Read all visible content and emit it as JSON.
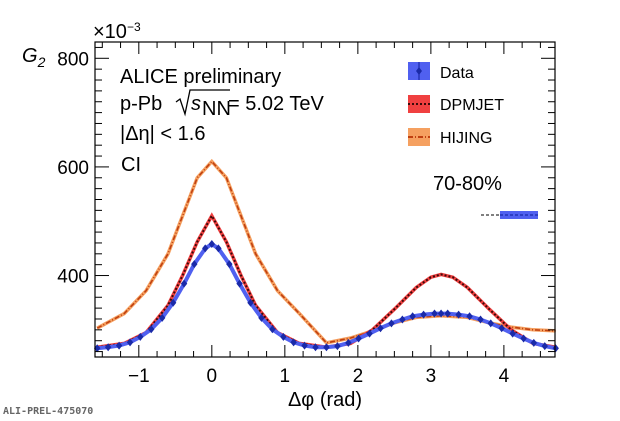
{
  "chart_data": {
    "type": "line",
    "ylabel_main": "G",
    "ylabel_sub": "2",
    "ymultiplier_base": "×10",
    "ymultiplier_exp": "−3",
    "xlabel": "Δφ (rad)",
    "xlim": [
      -1.6,
      4.7
    ],
    "ylim": [
      250,
      830
    ],
    "xticks": [
      -1,
      0,
      1,
      2,
      3,
      4
    ],
    "xtick_labels": [
      "−1",
      "0",
      "1",
      "2",
      "3",
      "4"
    ],
    "yticks": [
      400,
      600,
      800
    ],
    "ytick_labels": [
      "400",
      "600",
      "800"
    ],
    "annotations": {
      "line1": "ALICE preliminary",
      "line2_prefix": "p-Pb",
      "line2_s": "s",
      "line2_nn": "NN",
      "line2_value": " = 5.02 TeV",
      "line3": "|Δη| < 1.6",
      "line4": "CI",
      "centrality": "70-80%"
    },
    "legend": {
      "placement": "top-right",
      "entries": [
        "Data",
        "DPMJET",
        "HIJING"
      ]
    },
    "colors": {
      "data": "#1a2aa8",
      "data_band": "#5060f0",
      "dpmjet": "#3a0a0a",
      "dpmjet_band": "#f04040",
      "hijing": "#c04010",
      "hijing_band": "#f5a060"
    },
    "series": [
      {
        "name": "Data",
        "x": [
          -1.57,
          -1.42,
          -1.27,
          -1.12,
          -0.98,
          -0.83,
          -0.68,
          -0.53,
          -0.38,
          -0.24,
          -0.09,
          0.0,
          0.09,
          0.24,
          0.38,
          0.53,
          0.68,
          0.83,
          0.98,
          1.12,
          1.27,
          1.42,
          1.57,
          1.72,
          1.87,
          2.01,
          2.16,
          2.31,
          2.46,
          2.61,
          2.75,
          2.9,
          3.05,
          3.14,
          3.23,
          3.38,
          3.53,
          3.68,
          3.82,
          3.97,
          4.12,
          4.27,
          4.41,
          4.56,
          4.71
        ],
        "y": [
          266,
          268,
          271,
          277,
          287,
          301,
          322,
          350,
          385,
          421,
          450,
          458,
          450,
          421,
          385,
          350,
          322,
          301,
          287,
          277,
          271,
          268,
          268,
          270,
          276,
          284,
          293,
          303,
          312,
          319,
          325,
          328,
          330,
          330,
          330,
          328,
          325,
          319,
          312,
          303,
          293,
          284,
          276,
          270,
          266
        ]
      },
      {
        "name": "DPMJET",
        "x": [
          -1.57,
          -1.2,
          -0.9,
          -0.6,
          -0.4,
          -0.2,
          0.0,
          0.2,
          0.4,
          0.6,
          0.9,
          1.2,
          1.57,
          1.9,
          2.2,
          2.5,
          2.8,
          3.0,
          3.14,
          3.3,
          3.5,
          3.8,
          4.1,
          4.4,
          4.71
        ],
        "y": [
          268,
          275,
          295,
          345,
          400,
          462,
          510,
          462,
          400,
          345,
          295,
          275,
          268,
          275,
          300,
          338,
          378,
          397,
          402,
          397,
          378,
          338,
          300,
          275,
          268
        ]
      },
      {
        "name": "HIJING",
        "x": [
          -1.57,
          -1.2,
          -0.9,
          -0.6,
          -0.4,
          -0.2,
          0.0,
          0.2,
          0.4,
          0.6,
          0.9,
          1.2,
          1.57,
          1.9,
          2.2,
          2.5,
          2.8,
          3.14,
          3.5,
          3.8,
          4.1,
          4.4,
          4.71
        ],
        "y": [
          303,
          330,
          372,
          440,
          510,
          580,
          610,
          580,
          510,
          440,
          372,
          330,
          276,
          285,
          298,
          313,
          323,
          326,
          323,
          313,
          305,
          300,
          298
        ]
      }
    ]
  },
  "footer": {
    "label": "ALI-PREL-475070"
  }
}
